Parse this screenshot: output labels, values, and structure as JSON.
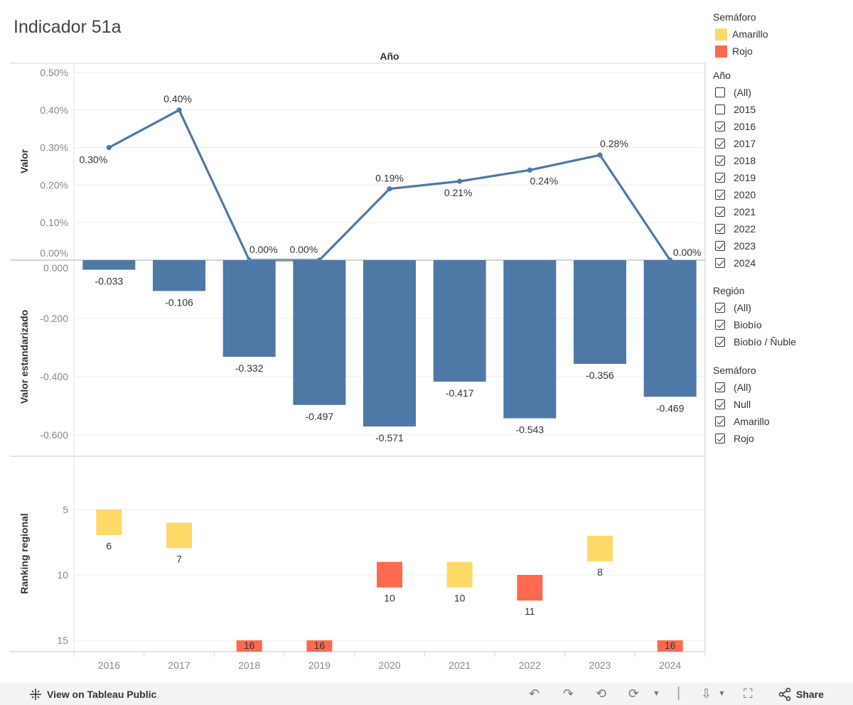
{
  "title": "Indicador 51a",
  "chart_data": [
    {
      "type": "line",
      "header": "Año",
      "ylabel": "Valor",
      "x": [
        "2016",
        "2017",
        "2018",
        "2019",
        "2020",
        "2021",
        "2022",
        "2023",
        "2024"
      ],
      "values": [
        0.3,
        0.4,
        0.0,
        0.0,
        0.19,
        0.21,
        0.24,
        0.28,
        0.0
      ],
      "labels": [
        "0.30%",
        "0.40%",
        "0.00%",
        "0.00%",
        "0.19%",
        "0.21%",
        "0.24%",
        "0.28%",
        "0.00%"
      ],
      "ylim": [
        0,
        0.5
      ],
      "yticks": [
        "0.00%",
        "0.10%",
        "0.20%",
        "0.30%",
        "0.40%",
        "0.50%"
      ],
      "color": "#4e79a7"
    },
    {
      "type": "bar",
      "ylabel": "Valor estandarizado",
      "categories": [
        "2016",
        "2017",
        "2018",
        "2019",
        "2020",
        "2021",
        "2022",
        "2023",
        "2024"
      ],
      "values": [
        -0.033,
        -0.106,
        -0.332,
        -0.497,
        -0.571,
        -0.417,
        -0.543,
        -0.356,
        -0.469
      ],
      "labels": [
        "-0.033",
        "-0.106",
        "-0.332",
        "-0.497",
        "-0.571",
        "-0.417",
        "-0.543",
        "-0.356",
        "-0.469"
      ],
      "ylim": [
        -0.65,
        0
      ],
      "yticks": [
        "0.000",
        "-0.200",
        "-0.400",
        "-0.600"
      ],
      "color": "#4e79a7"
    },
    {
      "type": "scatter",
      "ylabel": "Ranking regional",
      "categories": [
        "2016",
        "2017",
        "2018",
        "2019",
        "2020",
        "2021",
        "2022",
        "2023",
        "2024"
      ],
      "values": [
        6,
        7,
        16,
        16,
        10,
        10,
        11,
        8,
        16
      ],
      "labels": [
        "6",
        "7",
        "16",
        "16",
        "10",
        "10",
        "11",
        "8",
        "16"
      ],
      "semaforo": [
        "Amarillo",
        "Amarillo",
        "Rojo",
        "Rojo",
        "Rojo",
        "Amarillo",
        "Rojo",
        "Amarillo",
        "Rojo"
      ],
      "yticks": [
        "5",
        "10",
        "15"
      ],
      "ylim": [
        1,
        15.8
      ],
      "reversed": true
    }
  ],
  "x_ticks": [
    "2016",
    "2017",
    "2018",
    "2019",
    "2020",
    "2021",
    "2022",
    "2023",
    "2024"
  ],
  "colors": {
    "Amarillo": "#fdd967",
    "Rojo": "#fe6a4f",
    "bar": "#4e79a7"
  },
  "legend": {
    "title": "Semáforo",
    "items": [
      {
        "label": "Amarillo",
        "color": "#fdd967"
      },
      {
        "label": "Rojo",
        "color": "#fe6a4f"
      }
    ]
  },
  "filters": [
    {
      "title": "Año",
      "items": [
        {
          "label": "(All)",
          "checked": false
        },
        {
          "label": "2015",
          "checked": false
        },
        {
          "label": "2016",
          "checked": true
        },
        {
          "label": "2017",
          "checked": true
        },
        {
          "label": "2018",
          "checked": true
        },
        {
          "label": "2019",
          "checked": true
        },
        {
          "label": "2020",
          "checked": true
        },
        {
          "label": "2021",
          "checked": true
        },
        {
          "label": "2022",
          "checked": true
        },
        {
          "label": "2023",
          "checked": true
        },
        {
          "label": "2024",
          "checked": true
        }
      ]
    },
    {
      "title": "Región",
      "items": [
        {
          "label": "(All)",
          "checked": true
        },
        {
          "label": "Biobío",
          "checked": true
        },
        {
          "label": "Biobío / Ñuble",
          "checked": true
        }
      ]
    },
    {
      "title": "Semáforo",
      "items": [
        {
          "label": "(All)",
          "checked": true
        },
        {
          "label": "Null",
          "checked": true
        },
        {
          "label": "Amarillo",
          "checked": true
        },
        {
          "label": "Rojo",
          "checked": true
        }
      ]
    }
  ],
  "toolbar": {
    "view_label": "View on Tableau Public",
    "share_label": "Share"
  }
}
